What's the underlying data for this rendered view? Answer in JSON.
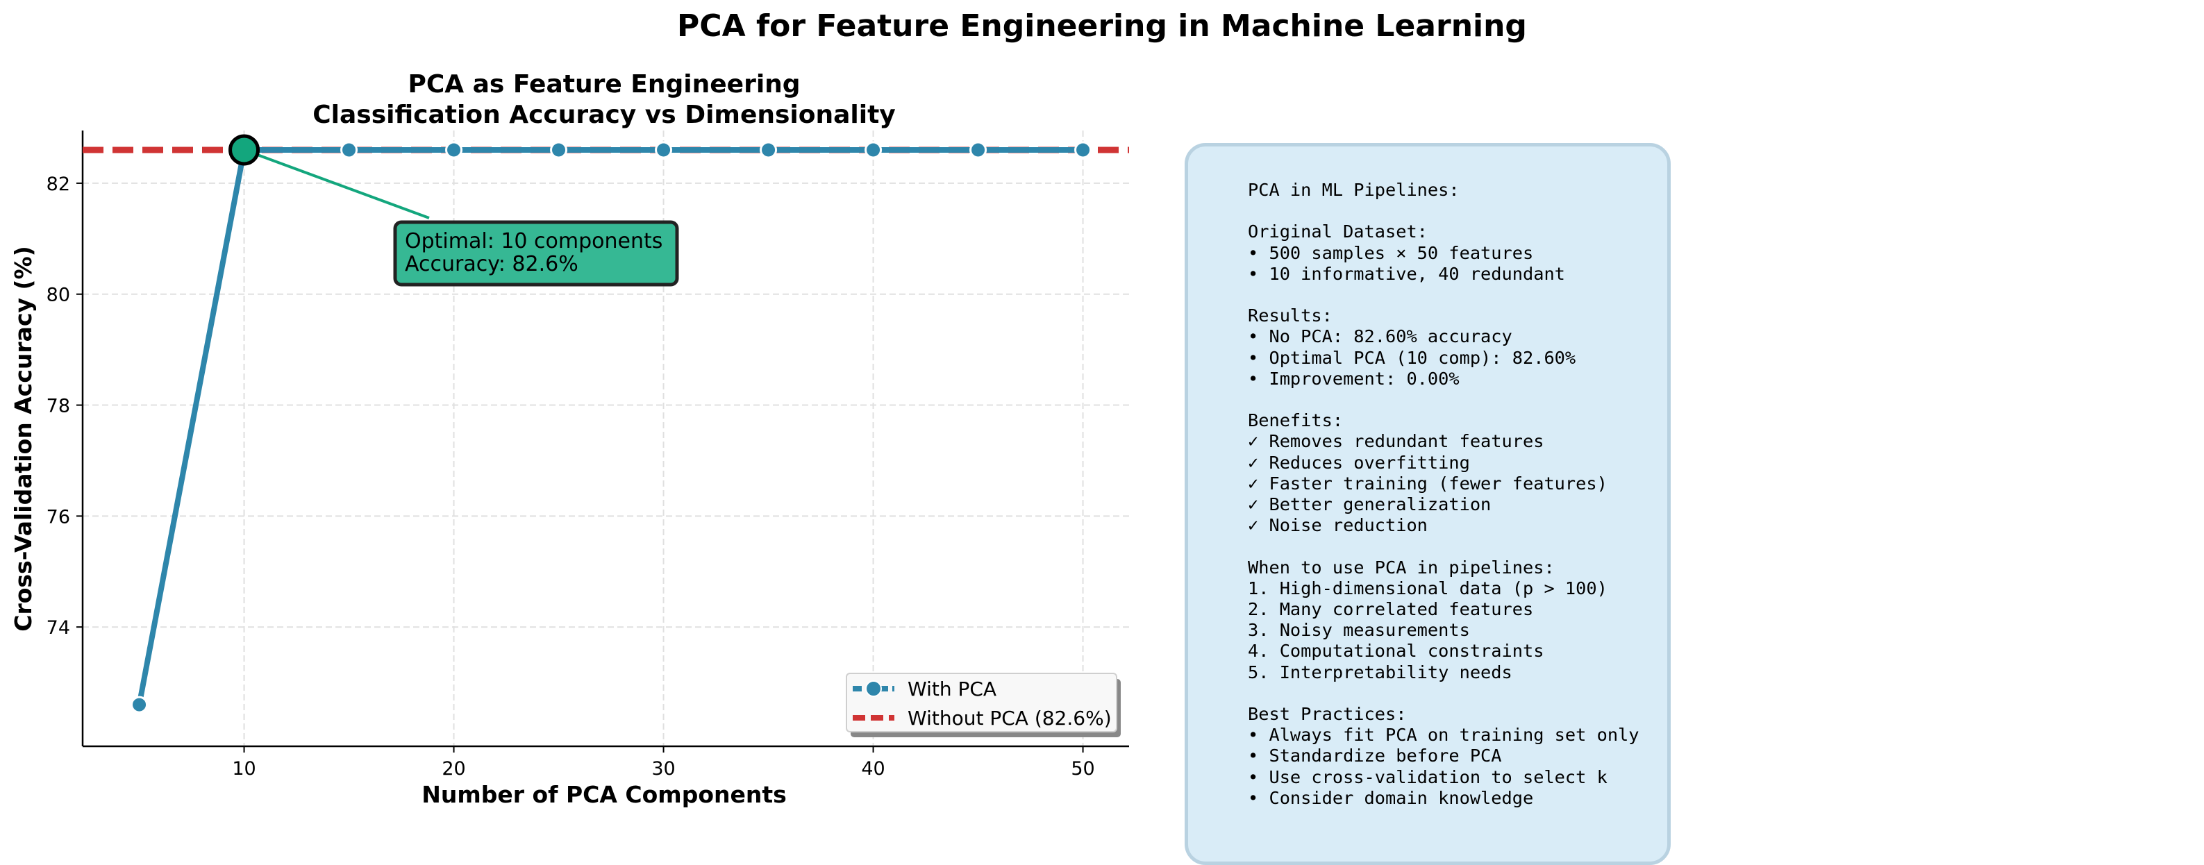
{
  "figure": {
    "suptitle": "PCA for Feature Engineering in Machine Learning"
  },
  "chart_data": {
    "type": "line",
    "title": "PCA as Feature Engineering\nClassification Accuracy vs Dimensionality",
    "xlabel": "Number of PCA Components",
    "ylabel": "Cross-Validation Accuracy (%)",
    "xlim": [
      2.3,
      52.2
    ],
    "ylim": [
      71.85,
      82.95
    ],
    "xticks": [
      10,
      20,
      30,
      40,
      50
    ],
    "yticks": [
      74,
      76,
      78,
      80,
      82
    ],
    "grid": true,
    "legend_position": "lower right",
    "series": [
      {
        "name": "With PCA",
        "color": "#2e86ab",
        "x": [
          5,
          10,
          15,
          20,
          25,
          30,
          35,
          40,
          45,
          50
        ],
        "y": [
          72.6,
          82.6,
          82.6,
          82.6,
          82.6,
          82.6,
          82.6,
          82.6,
          82.6,
          82.6
        ]
      },
      {
        "name": "Without PCA (82.6%)",
        "color": "#d03434",
        "style": "dashed",
        "y": 82.6
      }
    ],
    "highlight": {
      "x": 10,
      "y": 82.6,
      "color": "#13a67d"
    },
    "annotation": {
      "lines": [
        "Optimal: 10 components",
        "Accuracy: 82.6%"
      ],
      "box_color": "#36b894"
    }
  },
  "info_panel": {
    "text": "PCA in ML Pipelines:\n\nOriginal Dataset:\n• 500 samples × 50 features\n• 10 informative, 40 redundant\n\nResults:\n• No PCA: 82.60% accuracy\n• Optimal PCA (10 comp): 82.60%\n• Improvement: 0.00%\n\nBenefits:\n✓ Removes redundant features\n✓ Reduces overfitting\n✓ Faster training (fewer features)\n✓ Better generalization\n✓ Noise reduction\n\nWhen to use PCA in pipelines:\n1. High-dimensional data (p > 100)\n2. Many correlated features\n3. Noisy measurements\n4. Computational constraints\n5. Interpretability needs\n\nBest Practices:\n• Always fit PCA on training set only\n• Standardize before PCA\n• Use cross-validation to select k\n• Consider domain knowledge",
    "background": "#d9ecf7",
    "border": "#b9d2e1"
  }
}
